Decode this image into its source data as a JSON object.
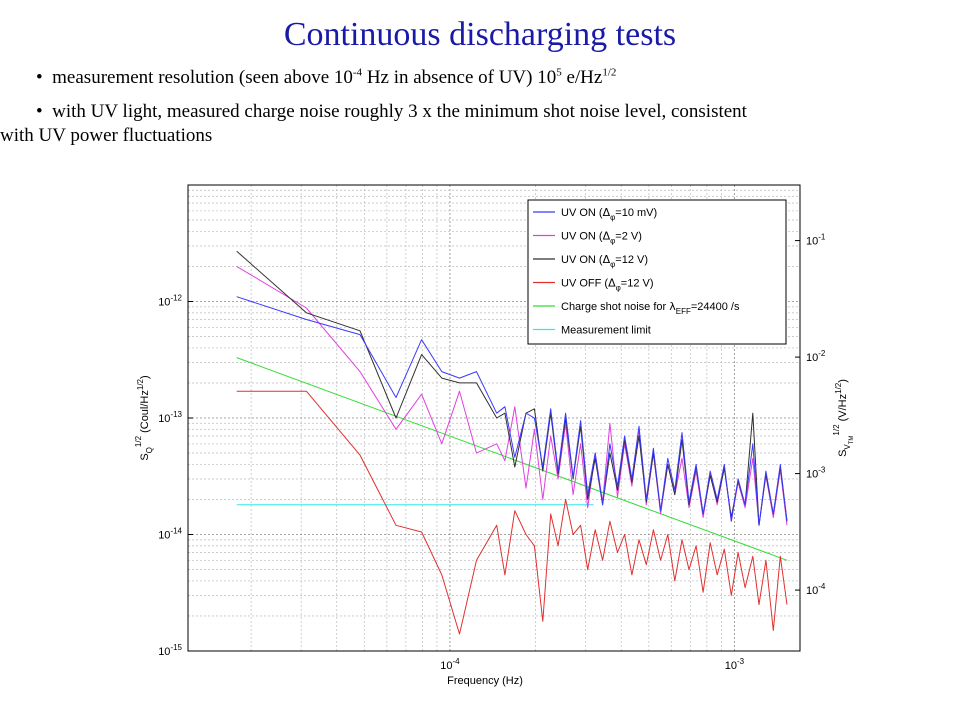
{
  "slide": {
    "title": "Continuous discharging tests",
    "bullet1": {
      "prefix": "measurement resolution (seen above 10",
      "exp1": "-4",
      "mid": " Hz in absence of UV) 10",
      "exp2": "5",
      "unit": " e/Hz",
      "exp3": "1/2"
    },
    "bullet2": {
      "line1": "with UV light, measured charge noise roughly 3 x the minimum shot noise level, consistent",
      "line2": "with UV power fluctuations"
    }
  },
  "chart_data": {
    "type": "line",
    "xscale": "log",
    "yscale": "log",
    "xlim": [
      1.2e-05,
      0.0017
    ],
    "ylim": [
      1e-15,
      1e-11
    ],
    "y2lim": [
      3e-05,
      0.3
    ],
    "grid": true,
    "legend_position": "top-right",
    "xlabel": "Frequency (Hz)",
    "ylabel": {
      "main": "S",
      "sub": "Q",
      "sup": "1/2",
      "units": " (Coul/Hz",
      "units_sup": "1/2",
      "close": ")"
    },
    "y2label": {
      "main": "S",
      "sub": "V",
      "subsub": "TM",
      "sup": "1/2",
      "units": " (V/Hz",
      "units_sup": "1/2",
      "close": ")"
    },
    "xticks": [
      {
        "value": 0.0001,
        "base": "10",
        "exp": "-4"
      },
      {
        "value": 0.001,
        "base": "10",
        "exp": "-3"
      }
    ],
    "yticks": [
      {
        "value": 1e-12,
        "base": "10",
        "exp": "-12"
      },
      {
        "value": 1e-13,
        "base": "10",
        "exp": "-13"
      },
      {
        "value": 1e-14,
        "base": "10",
        "exp": "-14"
      },
      {
        "value": 1e-15,
        "base": "10",
        "exp": "-15"
      }
    ],
    "y2ticks": [
      {
        "value": 0.1,
        "base": "10",
        "exp": "-1"
      },
      {
        "value": 0.01,
        "base": "10",
        "exp": "-2"
      },
      {
        "value": 0.001,
        "base": "10",
        "exp": "-3"
      },
      {
        "value": 0.0001,
        "base": "10",
        "exp": "-4"
      }
    ],
    "series": [
      {
        "name": "UV ON (Δφ=10 mV)",
        "legend": {
          "pre": "UV ON (",
          "sym": "Δ",
          "sub": "φ",
          "post": "=10 mV)"
        },
        "color": "#3a3aff",
        "x": [
          1.78e-05,
          3.13e-05,
          4.83e-05,
          6.46e-05,
          7.95e-05,
          9.36e-05,
          0.000108,
          0.000124,
          0.000146,
          0.000156,
          0.000169,
          0.000185,
          0.000198,
          0.000212,
          0.000226,
          0.00024,
          0.000255,
          0.000271,
          0.000288,
          0.000305,
          0.000324,
          0.000344,
          0.000365,
          0.000388,
          0.000411,
          0.000436,
          0.000462,
          0.00049,
          0.000519,
          0.00055,
          0.000583,
          0.000617,
          0.000654,
          0.000692,
          0.000733,
          0.000776,
          0.000822,
          0.00087,
          0.000921,
          0.000975,
          0.00103,
          0.00109,
          0.00116,
          0.00122,
          0.00129,
          0.00137,
          0.00145,
          0.00153
        ],
        "y": [
          1.1e-12,
          7e-13,
          5.2e-13,
          1.5e-13,
          4.7e-13,
          2.5e-13,
          2.2e-13,
          2.5e-13,
          1.1e-13,
          1.25e-13,
          4.6e-14,
          1.1e-13,
          1e-13,
          3.8e-14,
          1.2e-13,
          3.5e-14,
          1.1e-13,
          3.1e-14,
          9.5e-14,
          2.2e-14,
          5e-14,
          1.8e-14,
          6e-14,
          2.6e-14,
          7e-14,
          3e-14,
          8.5e-14,
          2e-14,
          5.5e-14,
          1.6e-14,
          4.5e-14,
          2.4e-14,
          7.5e-14,
          1.9e-14,
          4e-14,
          1.5e-14,
          3.5e-14,
          2e-14,
          4e-14,
          1.3e-14,
          3e-14,
          1.8e-14,
          6e-14,
          1.2e-14,
          3.5e-14,
          1.5e-14,
          4e-14,
          1.3e-14
        ]
      },
      {
        "name": "UV ON (Δφ=2 V)",
        "legend": {
          "pre": "UV ON (",
          "sym": "Δ",
          "sub": "φ",
          "post": "=2 V)"
        },
        "color": "#e040e0",
        "x": [
          1.78e-05,
          3.13e-05,
          4.83e-05,
          6.46e-05,
          7.95e-05,
          9.36e-05,
          0.000108,
          0.000124,
          0.000146,
          0.000156,
          0.000169,
          0.000185,
          0.000198,
          0.000212,
          0.000226,
          0.00024,
          0.000255,
          0.000271,
          0.000288,
          0.000305,
          0.000324,
          0.000344,
          0.000365,
          0.000388,
          0.000411,
          0.000436,
          0.000462,
          0.00049,
          0.000519,
          0.00055,
          0.000583,
          0.000617,
          0.000654,
          0.000692,
          0.000733,
          0.000776,
          0.000822,
          0.00087,
          0.000921,
          0.000975,
          0.00103,
          0.00109,
          0.00116,
          0.00122,
          0.00129,
          0.00137,
          0.00145,
          0.00153
        ],
        "y": [
          2e-12,
          8.8e-13,
          2.5e-13,
          8e-14,
          1.6e-13,
          6e-14,
          1.7e-13,
          5e-14,
          6e-14,
          4.3e-14,
          1.25e-13,
          2.5e-14,
          8e-14,
          2e-14,
          7e-14,
          3e-14,
          9e-14,
          2.2e-14,
          6e-14,
          1.7e-14,
          5e-14,
          1.9e-14,
          9e-14,
          2.1e-14,
          6e-14,
          2.6e-14,
          8e-14,
          1.8e-14,
          5e-14,
          1.5e-14,
          4e-14,
          2.2e-14,
          4.5e-14,
          1.7e-14,
          3.5e-14,
          1.4e-14,
          3.3e-14,
          1.8e-14,
          3.8e-14,
          1.3e-14,
          2.8e-14,
          1.7e-14,
          4.5e-14,
          1.2e-14,
          3.2e-14,
          1.4e-14,
          3.6e-14,
          1.2e-14
        ]
      },
      {
        "name": "UV ON (Δφ=12 V)",
        "legend": {
          "pre": "UV ON (",
          "sym": "Δ",
          "sub": "φ",
          "post": "=12 V)"
        },
        "color": "#303030",
        "x": [
          1.78e-05,
          3.13e-05,
          4.83e-05,
          6.46e-05,
          7.95e-05,
          9.36e-05,
          0.000108,
          0.000124,
          0.000146,
          0.000156,
          0.000169,
          0.000185,
          0.000198,
          0.000212,
          0.000226,
          0.00024,
          0.000255,
          0.000271,
          0.000288,
          0.000305,
          0.000324,
          0.000344,
          0.000365,
          0.000388,
          0.000411,
          0.000436,
          0.000462,
          0.00049,
          0.000519,
          0.00055,
          0.000583,
          0.000617,
          0.000654,
          0.000692,
          0.000733,
          0.000776,
          0.000822,
          0.00087,
          0.000921,
          0.000975,
          0.00103,
          0.00109,
          0.00116,
          0.00122,
          0.00129,
          0.00137,
          0.00145,
          0.00153
        ],
        "y": [
          2.7e-12,
          8e-13,
          5.6e-13,
          1e-13,
          3.5e-13,
          2.2e-13,
          2e-13,
          2e-13,
          1e-13,
          1.1e-13,
          3.8e-14,
          1.1e-13,
          1.2e-13,
          3.5e-14,
          1.1e-13,
          3.3e-14,
          1e-13,
          3e-14,
          8.5e-14,
          2e-14,
          4.5e-14,
          1.8e-14,
          5e-14,
          2.4e-14,
          6.5e-14,
          2.8e-14,
          7e-14,
          1.9e-14,
          5e-14,
          1.6e-14,
          4e-14,
          2.2e-14,
          6.5e-14,
          1.8e-14,
          3.8e-14,
          1.5e-14,
          3.2e-14,
          1.9e-14,
          3.7e-14,
          1.4e-14,
          2.9e-14,
          1.8e-14,
          1.1e-13,
          1.2e-14,
          3.3e-14,
          1.5e-14,
          3.8e-14,
          1.3e-14
        ]
      },
      {
        "name": "UV OFF (Δφ=12 V)",
        "legend": {
          "pre": "UV OFF (",
          "sym": "Δ",
          "sub": "φ",
          "post": "=12 V)"
        },
        "color": "#e03030",
        "x": [
          1.78e-05,
          3.13e-05,
          4.83e-05,
          6.46e-05,
          7.95e-05,
          9.36e-05,
          0.000108,
          0.000124,
          0.000146,
          0.000156,
          0.000169,
          0.000185,
          0.000198,
          0.000212,
          0.000226,
          0.00024,
          0.000255,
          0.000271,
          0.000288,
          0.000305,
          0.000324,
          0.000344,
          0.000365,
          0.000388,
          0.000411,
          0.000436,
          0.000462,
          0.00049,
          0.000519,
          0.00055,
          0.000583,
          0.000617,
          0.000654,
          0.000692,
          0.000733,
          0.000776,
          0.000822,
          0.00087,
          0.000921,
          0.000975,
          0.00103,
          0.00109,
          0.00116,
          0.00122,
          0.00129,
          0.00137,
          0.00145,
          0.00153
        ],
        "y": [
          1.7e-13,
          1.7e-13,
          4.8e-14,
          1.2e-14,
          1.05e-14,
          4.5e-15,
          1.4e-15,
          6e-15,
          1.2e-14,
          4.5e-15,
          1.6e-14,
          1e-14,
          8e-15,
          1.8e-15,
          1.5e-14,
          8e-15,
          2e-14,
          1e-14,
          1.2e-14,
          5e-15,
          1.1e-14,
          6e-15,
          1.3e-14,
          7e-15,
          1e-14,
          4.5e-15,
          9e-15,
          5.5e-15,
          1.1e-14,
          6e-15,
          1e-14,
          4e-15,
          9e-15,
          5e-15,
          8e-15,
          3.2e-15,
          8.5e-15,
          4.5e-15,
          7.5e-15,
          3e-15,
          7e-15,
          3.5e-15,
          6.5e-15,
          2.5e-15,
          6e-15,
          1.5e-15,
          6.5e-15,
          2.5e-15
        ]
      },
      {
        "name": "Charge shot noise for λEFF=24400 /s",
        "legend": {
          "pre": "Charge shot noise for ",
          "sym": "λ",
          "sub": "EFF",
          "post": "=24400 /s"
        },
        "color": "#33dd33",
        "x": [
          1.78e-05,
          0.00153
        ],
        "y": [
          3.3e-13,
          6e-15
        ]
      },
      {
        "name": "Measurement limit",
        "legend": {
          "pre": "Measurement limit",
          "sym": "",
          "sub": "",
          "post": ""
        },
        "color": "#33e8e8",
        "x": [
          1.78e-05,
          0.00032
        ],
        "y": [
          1.8e-14,
          1.8e-14
        ]
      }
    ]
  }
}
